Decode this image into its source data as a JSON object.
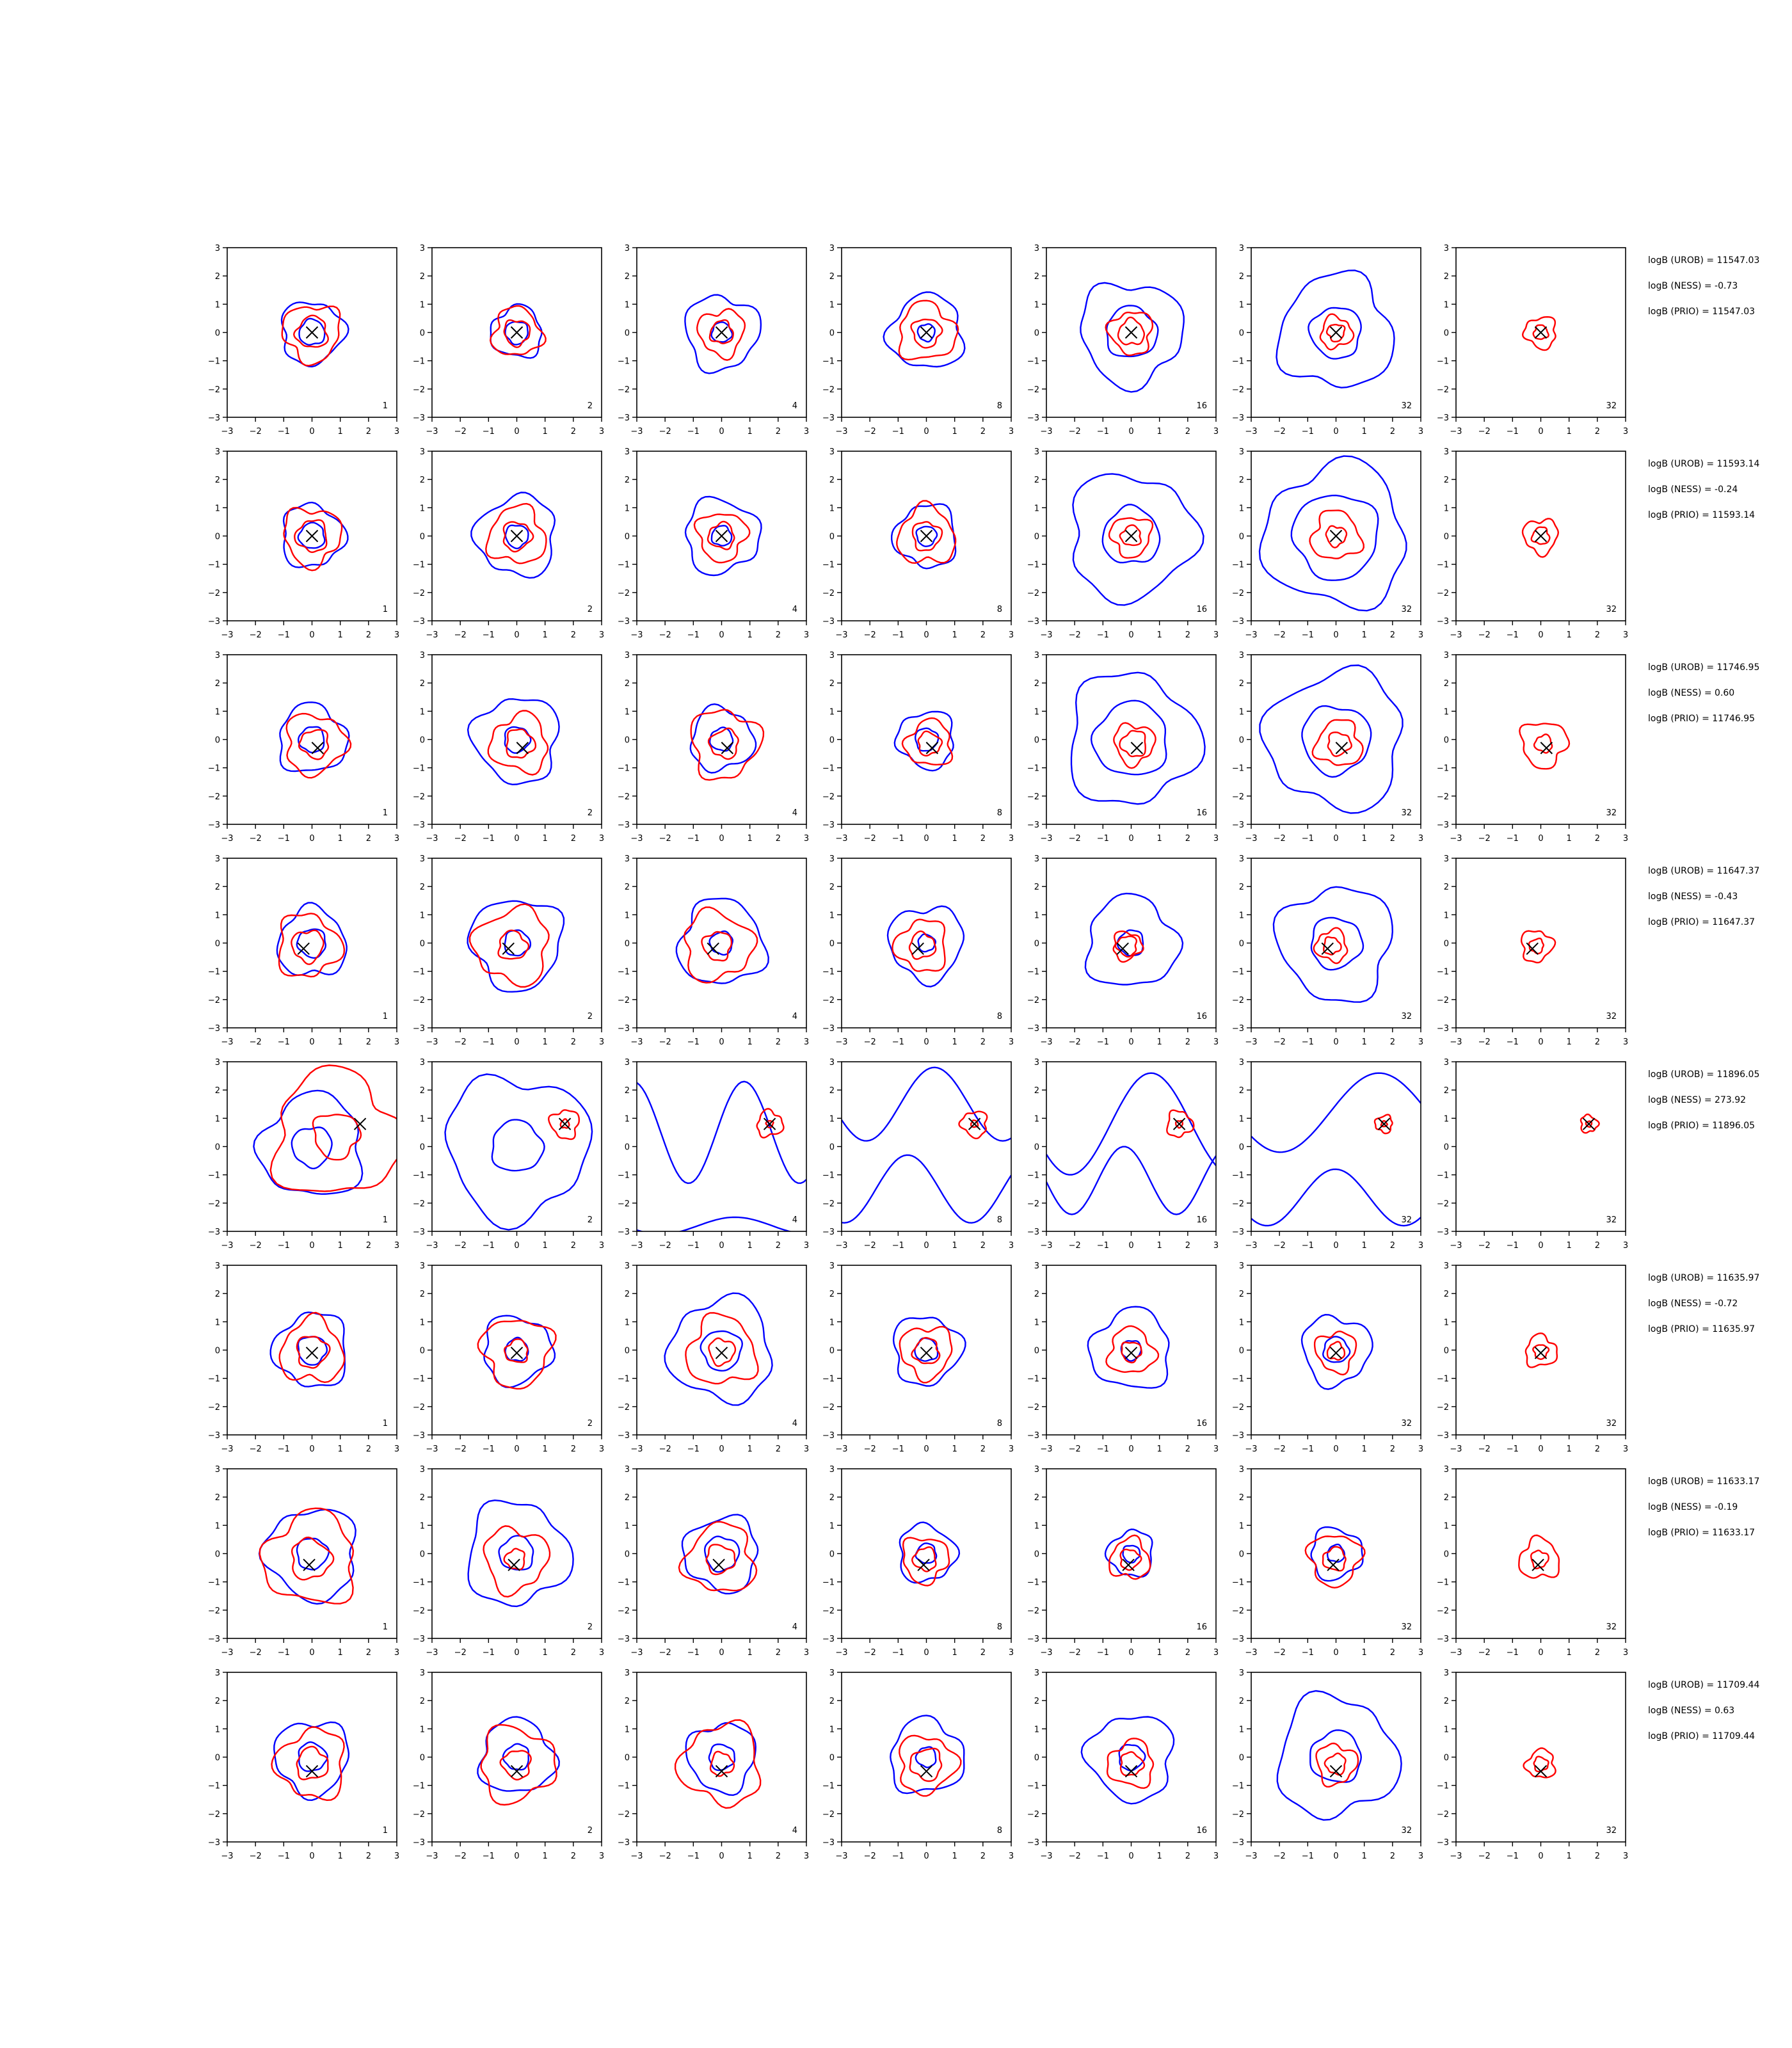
{
  "chart_data": {
    "type": "contour-grid",
    "title": "",
    "xlim": [
      -3,
      3
    ],
    "ylim": [
      -3,
      3
    ],
    "xticks": [
      "−3",
      "−2",
      "−1",
      "0",
      "1",
      "2",
      "3"
    ],
    "yticks": [
      "−3",
      "−2",
      "−1",
      "0",
      "1",
      "2",
      "3"
    ],
    "grid": false,
    "colors": {
      "outer_contour": "#0000ff",
      "inner_contour": "#ff0000",
      "marker": "#000000"
    },
    "column_labels": [
      "1",
      "2",
      "4",
      "8",
      "16",
      "32",
      "32"
    ],
    "rows": [
      {
        "marker": [
          0.0,
          0.0
        ],
        "annotations": [
          "logB (UROB) = 11547.03",
          "logB (NESS) = -0.73",
          "logB (PRIO) = 11547.03"
        ],
        "blue_radii": [
          [
            1.1,
            0.45
          ],
          [
            0.9,
            0.4
          ],
          [
            1.3,
            0.35
          ],
          [
            1.3,
            0.3
          ],
          [
            1.8,
            0.9
          ],
          [
            2.0,
            0.9
          ],
          [
            0,
            0
          ]
        ],
        "red_radii": [
          [
            1.0,
            0.55
          ],
          [
            0.85,
            0.45
          ],
          [
            0.8,
            0.4
          ],
          [
            1.0,
            0.5
          ],
          [
            0.75,
            0.45
          ],
          [
            0.55,
            0.3
          ],
          [
            0.55,
            0.25
          ]
        ]
      },
      {
        "marker": [
          0.0,
          0.0
        ],
        "annotations": [
          "logB (UROB) = 11593.14",
          "logB (NESS) = -0.24",
          "logB (PRIO) = 11593.14"
        ],
        "blue_radii": [
          [
            1.1,
            0.45
          ],
          [
            1.4,
            0.4
          ],
          [
            1.3,
            0.35
          ],
          [
            1.1,
            0.35
          ],
          [
            2.2,
            1.0
          ],
          [
            2.5,
            1.5
          ],
          [
            0,
            0
          ]
        ],
        "red_radii": [
          [
            1.0,
            0.55
          ],
          [
            1.0,
            0.5
          ],
          [
            0.85,
            0.45
          ],
          [
            1.0,
            0.5
          ],
          [
            0.7,
            0.35
          ],
          [
            0.85,
            0.35
          ],
          [
            0.6,
            0.3
          ]
        ]
      },
      {
        "marker": [
          0.2,
          -0.3
        ],
        "annotations": [
          "logB (UROB) = 11746.95",
          "logB (NESS) = 0.60",
          "logB (PRIO) = 11746.95"
        ],
        "blue_radii": [
          [
            1.2,
            0.45
          ],
          [
            1.5,
            0.45
          ],
          [
            1.1,
            0.4
          ],
          [
            1.0,
            0.4
          ],
          [
            2.3,
            1.3
          ],
          [
            2.4,
            1.2
          ],
          [
            0,
            0
          ]
        ],
        "red_radii": [
          [
            1.05,
            0.5
          ],
          [
            1.0,
            0.5
          ],
          [
            1.2,
            0.5
          ],
          [
            0.8,
            0.4
          ],
          [
            0.7,
            0.45
          ],
          [
            0.8,
            0.4
          ],
          [
            0.8,
            0.3
          ]
        ]
      },
      {
        "marker": [
          -0.3,
          -0.2
        ],
        "annotations": [
          "logB (UROB) = 11647.37",
          "logB (NESS) = -0.43",
          "logB (PRIO) = 11647.37"
        ],
        "blue_radii": [
          [
            1.2,
            0.5
          ],
          [
            1.6,
            0.45
          ],
          [
            1.5,
            0.4
          ],
          [
            1.3,
            0.3
          ],
          [
            1.6,
            0.45
          ],
          [
            2.0,
            0.9
          ],
          [
            0,
            0
          ]
        ],
        "red_radii": [
          [
            1.1,
            0.55
          ],
          [
            1.3,
            0.5
          ],
          [
            1.2,
            0.5
          ],
          [
            0.9,
            0.45
          ],
          [
            0.5,
            0.35
          ],
          [
            0.55,
            0.3
          ],
          [
            0.55,
            0.25
          ]
        ]
      },
      {
        "marker": [
          1.7,
          0.8
        ],
        "annotations": [
          "logB (UROB) = 11896.05",
          "logB (NESS) = 273.92",
          "logB (PRIO) = 11896.05"
        ],
        "blue_radii": [
          [
            1.8,
            0.7
          ],
          [
            2.5,
            0.9
          ],
          [
            0,
            0
          ],
          [
            0,
            0
          ],
          [
            0,
            0
          ],
          [
            0,
            0
          ],
          [
            0,
            0
          ]
        ],
        "red_radii": [
          [
            2.2,
            0.8
          ],
          [
            0.5,
            0.15
          ],
          [
            0.45,
            0.12
          ],
          [
            0.45,
            0.12
          ],
          [
            0.45,
            0.12
          ],
          [
            0.3,
            0.1
          ],
          [
            0.3,
            0.1
          ]
        ]
      },
      {
        "marker": [
          0.0,
          -0.1
        ],
        "annotations": [
          "logB (UROB) = 11635.97",
          "logB (NESS) = -0.72",
          "logB (PRIO) = 11635.97"
        ],
        "blue_radii": [
          [
            1.3,
            0.5
          ],
          [
            1.2,
            0.4
          ],
          [
            1.8,
            0.7
          ],
          [
            1.2,
            0.4
          ],
          [
            1.4,
            0.35
          ],
          [
            1.2,
            0.45
          ],
          [
            0,
            0
          ]
        ],
        "red_radii": [
          [
            1.1,
            0.55
          ],
          [
            1.2,
            0.4
          ],
          [
            1.2,
            0.45
          ],
          [
            0.9,
            0.45
          ],
          [
            0.8,
            0.35
          ],
          [
            0.7,
            0.3
          ],
          [
            0.55,
            0.25
          ]
        ]
      },
      {
        "marker": [
          -0.1,
          -0.4
        ],
        "annotations": [
          "logB (UROB) = 11633.17",
          "logB (NESS) = -0.19",
          "logB (PRIO) = 11633.17"
        ],
        "blue_radii": [
          [
            1.6,
            0.55
          ],
          [
            1.8,
            0.6
          ],
          [
            1.3,
            0.6
          ],
          [
            1.0,
            0.35
          ],
          [
            0.8,
            0.3
          ],
          [
            0.9,
            0.3
          ],
          [
            0,
            0
          ]
        ],
        "red_radii": [
          [
            1.6,
            0.7
          ],
          [
            1.1,
            0.35
          ],
          [
            1.2,
            0.5
          ],
          [
            0.8,
            0.4
          ],
          [
            0.7,
            0.35
          ],
          [
            0.9,
            0.4
          ],
          [
            0.7,
            0.3
          ]
        ]
      },
      {
        "marker": [
          0.0,
          -0.5
        ],
        "annotations": [
          "logB (UROB) = 11709.44",
          "logB (NESS) = 0.63",
          "logB (PRIO) = 11709.44"
        ],
        "blue_radii": [
          [
            1.3,
            0.5
          ],
          [
            1.3,
            0.45
          ],
          [
            1.2,
            0.45
          ],
          [
            1.3,
            0.35
          ],
          [
            1.5,
            0.45
          ],
          [
            2.1,
            0.9
          ],
          [
            0,
            0
          ]
        ],
        "red_radii": [
          [
            1.2,
            0.55
          ],
          [
            1.3,
            0.5
          ],
          [
            1.4,
            0.4
          ],
          [
            1.0,
            0.55
          ],
          [
            0.8,
            0.4
          ],
          [
            0.7,
            0.35
          ],
          [
            0.5,
            0.25
          ]
        ]
      }
    ]
  }
}
